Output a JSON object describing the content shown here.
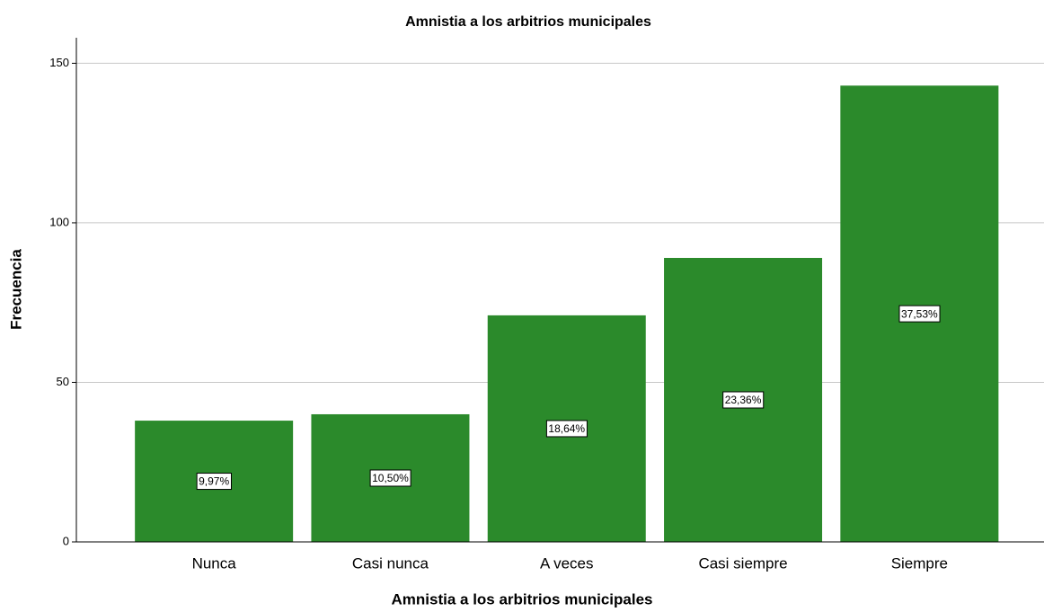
{
  "chart_data": {
    "type": "bar",
    "title": "Amnistia a los arbitrios municipales",
    "x_label": "Amnistia a los arbitrios municipales",
    "y_label": "Frecuencia",
    "categories": [
      "Nunca",
      "Casi nunca",
      "A veces",
      "Casi siempre",
      "Siempre"
    ],
    "values": [
      38,
      40,
      71,
      89,
      143
    ],
    "percent_labels": [
      "9,97%",
      "10,50%",
      "18,64%",
      "23,36%",
      "37,53%"
    ],
    "color": "#2b8a2b",
    "ylim": [
      0,
      158
    ],
    "yticks": [
      0,
      50,
      100,
      150
    ],
    "grid": true
  }
}
